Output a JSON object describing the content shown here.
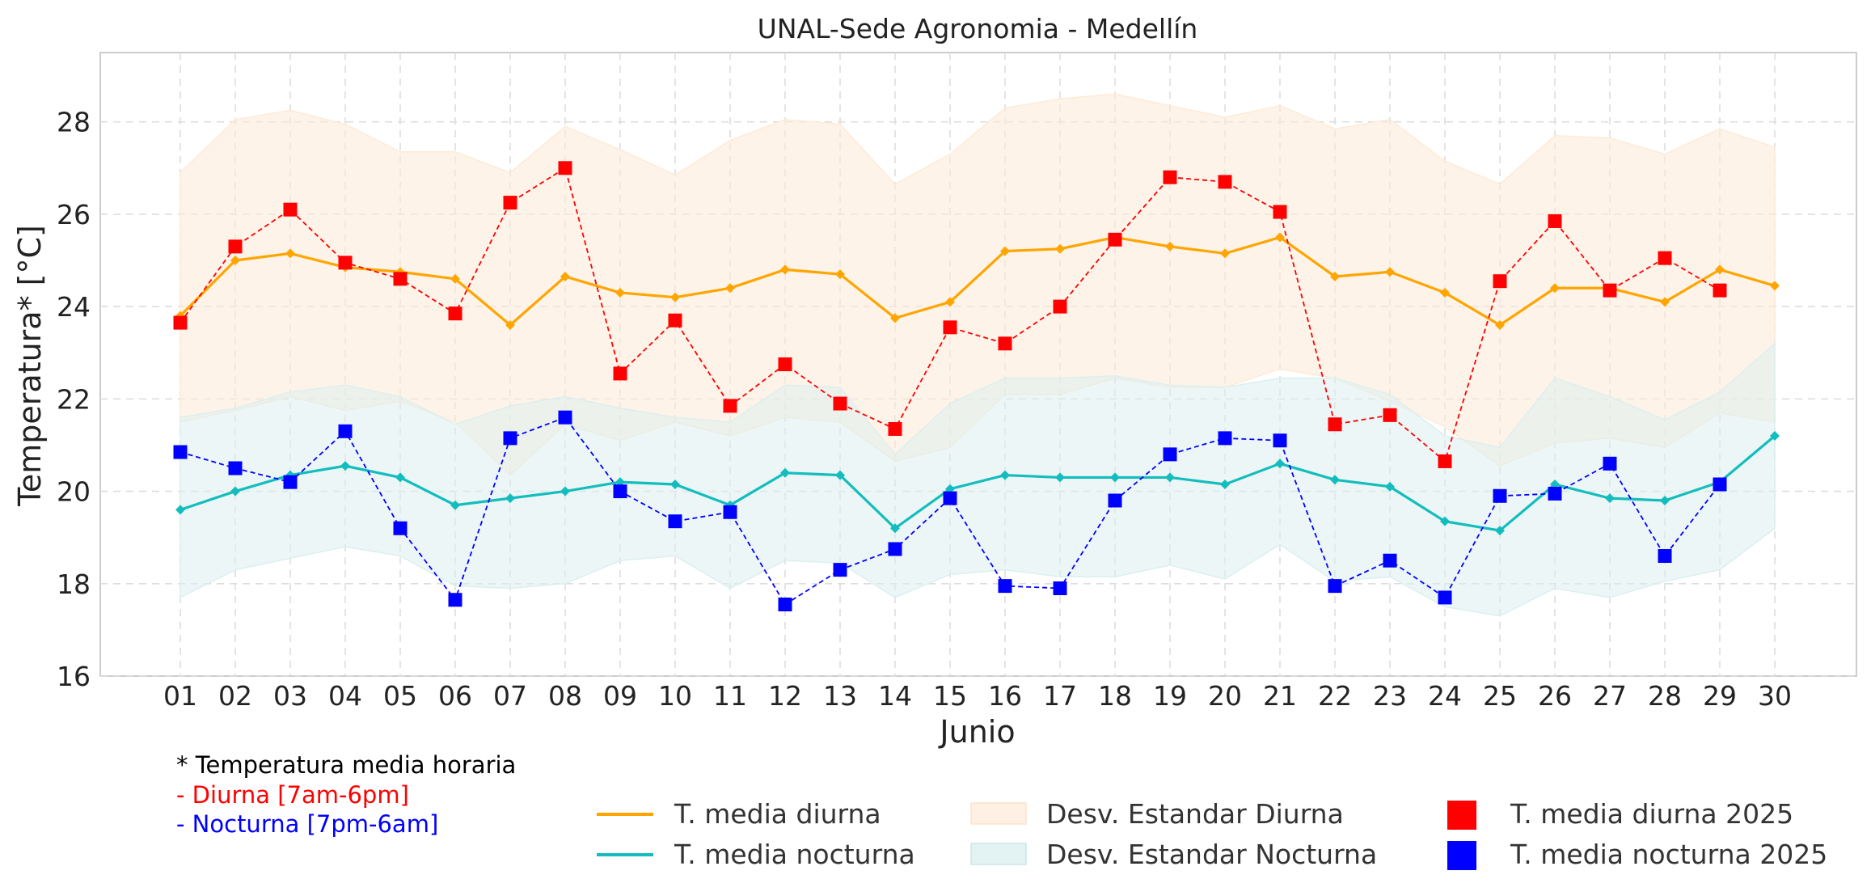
{
  "chart_data": {
    "type": "line",
    "title": "UNAL-Sede Agronomia - Medellín",
    "xlabel": "Junio",
    "ylabel": "Temperatura* [°C]",
    "ylim": [
      16,
      29.5
    ],
    "yticks": [
      16,
      18,
      20,
      22,
      24,
      26,
      28
    ],
    "grid": true,
    "categories": [
      "01",
      "02",
      "03",
      "04",
      "05",
      "06",
      "07",
      "08",
      "09",
      "10",
      "11",
      "12",
      "13",
      "14",
      "15",
      "16",
      "17",
      "18",
      "19",
      "20",
      "21",
      "22",
      "23",
      "24",
      "25",
      "26",
      "27",
      "28",
      "29",
      "30"
    ],
    "series": [
      {
        "name": "T. media diurna",
        "kind": "line",
        "color": "#FFA500",
        "values": [
          23.8,
          25.0,
          25.15,
          24.85,
          24.75,
          24.6,
          23.6,
          24.65,
          24.3,
          24.2,
          24.4,
          24.8,
          24.7,
          23.75,
          24.1,
          25.2,
          25.25,
          25.5,
          25.3,
          25.15,
          25.5,
          24.65,
          24.75,
          24.3,
          23.6,
          24.4,
          24.4,
          24.1,
          24.8,
          24.45
        ]
      },
      {
        "name": "T. media nocturna",
        "kind": "line",
        "color": "#14BDBD",
        "values": [
          19.6,
          20.0,
          20.35,
          20.55,
          20.3,
          19.7,
          19.85,
          20.0,
          20.2,
          20.15,
          19.7,
          20.4,
          20.35,
          19.2,
          20.05,
          20.35,
          20.3,
          20.3,
          20.3,
          20.15,
          20.6,
          20.25,
          20.1,
          19.35,
          19.15,
          20.15,
          19.85,
          19.8,
          20.2,
          21.2
        ]
      },
      {
        "name": "Desv. Estandar Diurna",
        "kind": "band",
        "color": "#FDEBD8",
        "upper": [
          26.9,
          28.05,
          28.25,
          27.95,
          27.35,
          27.35,
          26.9,
          27.9,
          27.4,
          26.85,
          27.6,
          28.05,
          27.95,
          26.65,
          27.3,
          28.3,
          28.5,
          28.6,
          28.35,
          28.1,
          28.35,
          27.85,
          28.05,
          27.15,
          26.65,
          27.7,
          27.65,
          27.3,
          27.85,
          27.45
        ],
        "lower": [
          21.5,
          21.75,
          22.05,
          21.75,
          21.95,
          21.5,
          20.35,
          21.45,
          21.1,
          21.5,
          21.2,
          21.6,
          21.5,
          20.65,
          20.95,
          22.1,
          22.1,
          22.45,
          22.25,
          22.25,
          22.65,
          22.45,
          21.95,
          21.4,
          20.55,
          21.05,
          21.15,
          20.95,
          21.7,
          21.5
        ]
      },
      {
        "name": "Desv. Estandar Nocturna",
        "kind": "band",
        "color": "#DCEFEF",
        "upper": [
          21.6,
          21.8,
          22.15,
          22.3,
          22.05,
          21.45,
          21.85,
          22.05,
          21.8,
          21.6,
          21.5,
          22.3,
          22.25,
          20.8,
          21.9,
          22.45,
          22.45,
          22.5,
          22.3,
          22.25,
          22.45,
          22.45,
          22.1,
          21.2,
          20.95,
          22.45,
          22.05,
          21.55,
          22.15,
          23.2
        ],
        "lower": [
          17.7,
          18.3,
          18.55,
          18.8,
          18.6,
          17.95,
          17.9,
          18.0,
          18.5,
          18.6,
          17.9,
          18.5,
          18.45,
          17.7,
          18.2,
          18.3,
          18.15,
          18.15,
          18.4,
          18.1,
          18.85,
          18.05,
          18.15,
          17.5,
          17.3,
          17.9,
          17.7,
          18.05,
          18.3,
          19.2
        ]
      },
      {
        "name": "T. media diurna 2025",
        "kind": "marker",
        "color": "#FF0000",
        "values": [
          23.65,
          25.3,
          26.1,
          24.95,
          24.6,
          23.85,
          26.25,
          27.0,
          22.55,
          23.7,
          21.85,
          22.75,
          21.9,
          21.35,
          23.55,
          23.2,
          24.0,
          25.45,
          26.8,
          26.7,
          26.05,
          21.45,
          21.65,
          20.65,
          24.55,
          25.85,
          24.35,
          25.05,
          24.35,
          null
        ]
      },
      {
        "name": "T. media nocturna 2025",
        "kind": "marker",
        "color": "#0000FF",
        "values": [
          20.85,
          20.5,
          20.2,
          21.3,
          19.2,
          17.65,
          21.15,
          21.6,
          20.0,
          19.35,
          19.55,
          17.55,
          18.3,
          18.75,
          19.85,
          17.95,
          17.9,
          19.8,
          20.8,
          21.15,
          21.1,
          17.95,
          18.5,
          17.7,
          19.9,
          19.95,
          20.6,
          18.6,
          20.15,
          null
        ]
      }
    ]
  },
  "legend": {
    "items": [
      {
        "label": "T. media diurna"
      },
      {
        "label": "T. media nocturna"
      },
      {
        "label": "Desv. Estandar Diurna"
      },
      {
        "label": "Desv. Estandar Nocturna"
      },
      {
        "label": "T. media diurna 2025"
      },
      {
        "label": "T. media nocturna 2025"
      }
    ]
  },
  "footnote": {
    "line1": "* Temperatura media horaria",
    "line2": "- Diurna [7am-6pm]",
    "line3": "- Nocturna [7pm-6am]",
    "line2_color": "#FF0000",
    "line3_color": "#0000FF"
  }
}
